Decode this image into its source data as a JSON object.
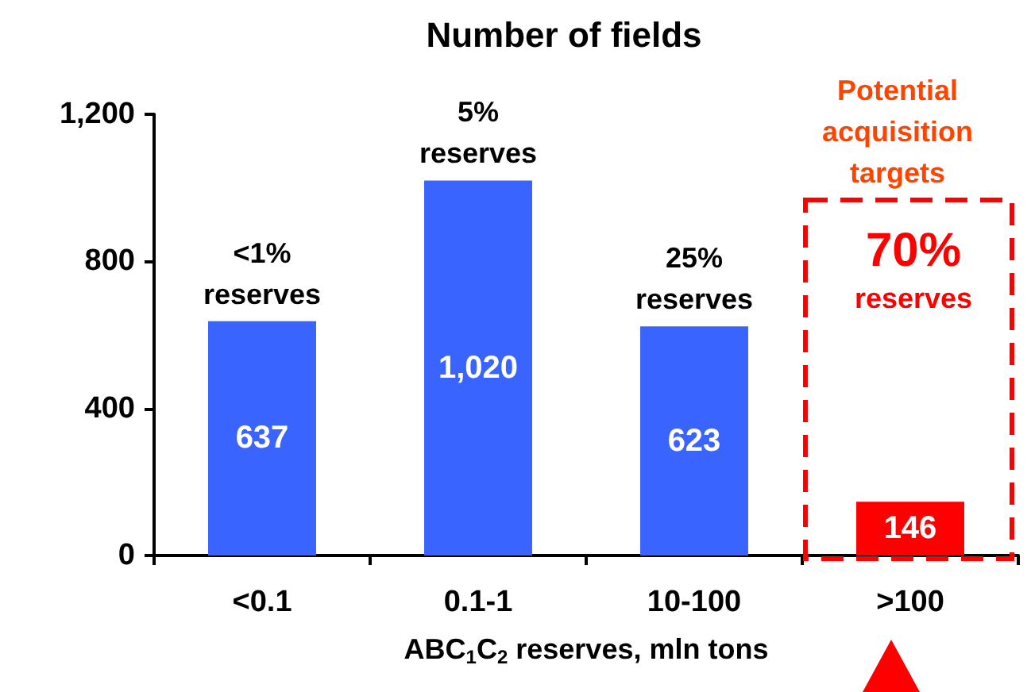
{
  "chart_data": {
    "type": "bar",
    "title": "Number of fields",
    "xlabel": "ABC$_{1}$C$_{2}$ reserves, mln tons",
    "categories": [
      "<0.1",
      "0.1-1",
      "10-100",
      ">100"
    ],
    "values": [
      637,
      1020,
      623,
      146
    ],
    "colors": [
      "#3a64ff",
      "#3a64ff",
      "#3a64ff",
      "#ff0000"
    ],
    "ylim": [
      0,
      1200
    ],
    "yticks": [
      0,
      400,
      800,
      {
        "value": 1200,
        "label": "1,200"
      }
    ],
    "grid": false,
    "value_labels": [
      "637",
      "1,020",
      "623",
      "146"
    ],
    "annotations": [
      {
        "text": "<1% reserves",
        "x": "<0.1",
        "y": 637
      },
      {
        "text": "5% reserves",
        "x": "0.1-1",
        "y": 1020
      },
      {
        "text": "25% reserves",
        "x": "10-100",
        "y": 623
      },
      "Potential acquisition targets",
      "70% reserves"
    ]
  }
}
